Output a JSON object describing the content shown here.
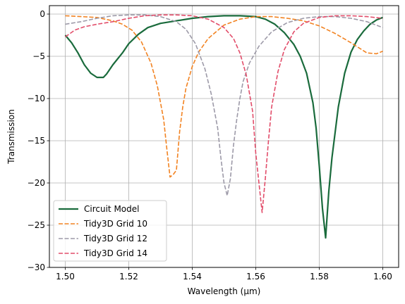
{
  "chart_data": {
    "type": "line",
    "xlabel": "Wavelength (µm)",
    "ylabel": "Transmission",
    "xlim": [
      1.495,
      1.605
    ],
    "ylim": [
      -30,
      1
    ],
    "xticks": [
      1.5,
      1.52,
      1.54,
      1.56,
      1.58,
      1.6
    ],
    "xtick_labels": [
      "1.50",
      "1.52",
      "1.54",
      "1.56",
      "1.58",
      "1.60"
    ],
    "yticks": [
      -30,
      -25,
      -20,
      -15,
      -10,
      -5,
      0
    ],
    "ytick_labels": [
      "−30",
      "−25",
      "−20",
      "−15",
      "−10",
      "−5",
      "0"
    ],
    "grid": true,
    "legend_position": "lower-left",
    "series": [
      {
        "name": "Circuit Model",
        "color": "#1a6b3c",
        "style": "solid",
        "x": [
          1.5,
          1.502,
          1.504,
          1.506,
          1.508,
          1.51,
          1.511,
          1.512,
          1.513,
          1.515,
          1.518,
          1.52,
          1.523,
          1.526,
          1.53,
          1.535,
          1.54,
          1.545,
          1.55,
          1.555,
          1.56,
          1.563,
          1.566,
          1.569,
          1.572,
          1.574,
          1.576,
          1.578,
          1.579,
          1.58,
          1.581,
          1.582,
          1.583,
          1.584,
          1.586,
          1.588,
          1.59,
          1.592,
          1.594,
          1.596,
          1.598,
          1.6
        ],
        "y": [
          -2.5,
          -3.4,
          -4.6,
          -6.0,
          -7.0,
          -7.5,
          -7.5,
          -7.5,
          -7.1,
          -6.0,
          -4.6,
          -3.5,
          -2.4,
          -1.6,
          -1.1,
          -0.8,
          -0.5,
          -0.3,
          -0.2,
          -0.2,
          -0.3,
          -0.6,
          -1.2,
          -2.2,
          -3.6,
          -5.0,
          -7.0,
          -10.5,
          -13.5,
          -18.0,
          -23.0,
          -26.5,
          -21.0,
          -17.0,
          -11.0,
          -7.0,
          -4.5,
          -3.0,
          -2.0,
          -1.2,
          -0.7,
          -0.4
        ]
      },
      {
        "name": "Tidy3D Grid 10",
        "color": "#f28322",
        "style": "dashed",
        "x": [
          1.5,
          1.505,
          1.51,
          1.515,
          1.518,
          1.521,
          1.524,
          1.527,
          1.529,
          1.531,
          1.532,
          1.533,
          1.534,
          1.535,
          1.536,
          1.537,
          1.538,
          1.54,
          1.542,
          1.545,
          1.55,
          1.555,
          1.56,
          1.565,
          1.57,
          1.575,
          1.58,
          1.585,
          1.59,
          1.595,
          1.598,
          1.6
        ],
        "y": [
          -0.2,
          -0.3,
          -0.4,
          -0.8,
          -1.2,
          -1.9,
          -3.3,
          -5.8,
          -8.5,
          -12.5,
          -16.0,
          -19.3,
          -19.0,
          -18.5,
          -14.0,
          -11.0,
          -8.8,
          -6.2,
          -4.5,
          -2.9,
          -1.3,
          -0.6,
          -0.3,
          -0.3,
          -0.5,
          -0.8,
          -1.4,
          -2.3,
          -3.4,
          -4.6,
          -4.7,
          -4.4
        ]
      },
      {
        "name": "Tidy3D Grid 12",
        "color": "#9d9aa8",
        "style": "dashed",
        "x": [
          1.5,
          1.505,
          1.51,
          1.515,
          1.52,
          1.525,
          1.53,
          1.535,
          1.538,
          1.541,
          1.544,
          1.546,
          1.548,
          1.549,
          1.55,
          1.551,
          1.552,
          1.553,
          1.554,
          1.555,
          1.556,
          1.558,
          1.561,
          1.565,
          1.57,
          1.575,
          1.58,
          1.585,
          1.59,
          1.595,
          1.6
        ],
        "y": [
          -1.2,
          -0.9,
          -0.5,
          -0.2,
          -0.1,
          -0.1,
          -0.3,
          -0.9,
          -1.8,
          -3.5,
          -6.5,
          -9.5,
          -13.5,
          -17.0,
          -20.0,
          -21.5,
          -19.5,
          -15.5,
          -12.5,
          -10.0,
          -8.0,
          -5.8,
          -3.8,
          -2.1,
          -1.0,
          -0.5,
          -0.3,
          -0.3,
          -0.5,
          -0.9,
          -1.6
        ]
      },
      {
        "name": "Tidy3D Grid 14",
        "color": "#e24d6a",
        "style": "dashed",
        "x": [
          1.5,
          1.503,
          1.506,
          1.51,
          1.515,
          1.52,
          1.525,
          1.53,
          1.535,
          1.54,
          1.545,
          1.55,
          1.553,
          1.555,
          1.557,
          1.559,
          1.56,
          1.561,
          1.562,
          1.563,
          1.564,
          1.565,
          1.567,
          1.569,
          1.572,
          1.575,
          1.58,
          1.585,
          1.59,
          1.595,
          1.6
        ],
        "y": [
          -2.7,
          -1.9,
          -1.5,
          -1.2,
          -0.9,
          -0.5,
          -0.2,
          -0.1,
          -0.1,
          -0.2,
          -0.6,
          -1.6,
          -2.9,
          -4.6,
          -7.2,
          -11.5,
          -16.5,
          -20.0,
          -23.5,
          -19.5,
          -15.0,
          -11.0,
          -6.8,
          -4.2,
          -2.1,
          -1.1,
          -0.4,
          -0.2,
          -0.2,
          -0.3,
          -0.5
        ]
      }
    ]
  }
}
